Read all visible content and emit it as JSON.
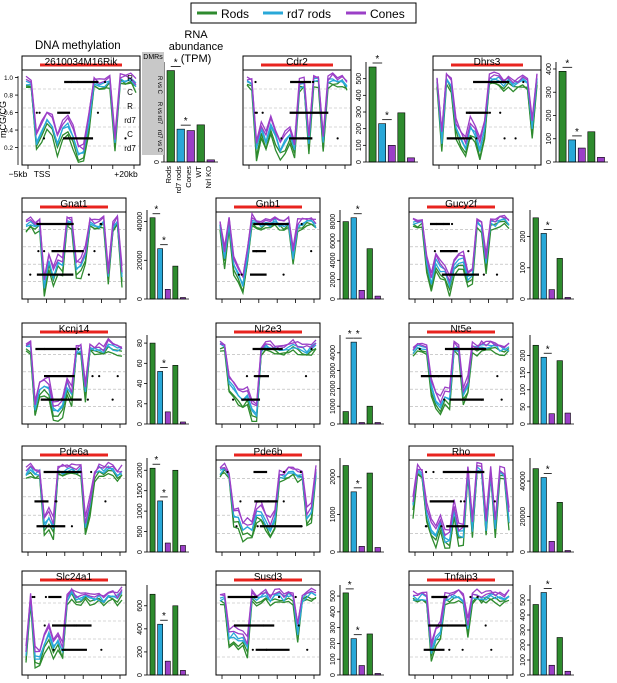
{
  "legend": [
    {
      "label": "Rods",
      "color": "#2e8b2e"
    },
    {
      "label": "rd7 rods",
      "color": "#29a8d8"
    },
    {
      "label": "Cones",
      "color": "#9b3fc7"
    }
  ],
  "headers": {
    "dna": "DNA methylation",
    "rna1": "RNA",
    "rna2": "abundance",
    "rna3": "(TPM)"
  },
  "first_panel": {
    "dmr_header": "DMRs",
    "row_labels": [
      "R",
      "C",
      "R",
      "rd7",
      "C",
      "rd7"
    ],
    "dmr_labels": [
      "R vs C",
      "R vs rd7",
      "rd7 vs C"
    ],
    "ylabel": "mCG/CG",
    "yticks": [
      "0.2",
      "0.4",
      "0.6",
      "0.8",
      "1.0"
    ],
    "xticks": [
      "−5kb",
      "TSS",
      "+20kb"
    ],
    "bar_xticks": [
      "Rods",
      "rd7 rods",
      "Cones",
      "WT",
      "Nrl KO"
    ],
    "bar_yticks": [
      "0",
      "200",
      "400",
      "600"
    ]
  },
  "colors": {
    "rods": "#2e8b2e",
    "rd7": "#29a8d8",
    "cones": "#9b3fc7",
    "gene_bar": "#e8241f",
    "shade": "#c8c8c8"
  },
  "chart_data": [
    {
      "type": "bar",
      "gene": "2610034M16Rik",
      "categories": [
        "Rods",
        "rd7 rods",
        "Cones",
        "WT",
        "Nrl KO"
      ],
      "values": [
        640,
        230,
        220,
        260,
        15
      ],
      "yticks": [
        "0",
        "200",
        "400",
        "600"
      ],
      "ylim": [
        0,
        700
      ],
      "sig": [
        {
          "a": 0,
          "b": 1,
          "label": "*"
        },
        {
          "a": 1,
          "b": 2,
          "label": "*"
        }
      ]
    },
    {
      "type": "bar",
      "gene": "Cdr2",
      "categories": [
        "Rods",
        "rd7 rods",
        "Cones",
        "WT",
        "Nrl KO"
      ],
      "values": [
        570,
        230,
        100,
        295,
        25
      ],
      "yticks": [
        "0",
        "100",
        "200",
        "300",
        "400",
        "500"
      ],
      "ylim": [
        0,
        600
      ],
      "sig": [
        {
          "a": 0,
          "b": 1,
          "label": "*"
        },
        {
          "a": 1,
          "b": 2,
          "label": "*"
        }
      ]
    },
    {
      "type": "bar",
      "gene": "Dhrs3",
      "categories": [
        "Rods",
        "rd7 rods",
        "Cones",
        "WT",
        "Nrl KO"
      ],
      "values": [
        390,
        95,
        60,
        130,
        20
      ],
      "yticks": [
        "0",
        "100",
        "200",
        "300",
        "400"
      ],
      "ylim": [
        0,
        430
      ],
      "sig": [
        {
          "a": 0,
          "b": 1,
          "label": "*"
        },
        {
          "a": 1,
          "b": 2,
          "label": "*"
        }
      ]
    },
    {
      "type": "bar",
      "gene": "Gnat1",
      "categories": [
        "Rods",
        "rd7 rods",
        "Cones",
        "WT",
        "Nrl KO"
      ],
      "values": [
        42000,
        26000,
        5000,
        17000,
        500
      ],
      "yticks": [
        "0",
        "20000",
        "40000"
      ],
      "ylim": [
        0,
        46000
      ],
      "sig": [
        {
          "a": 0,
          "b": 1,
          "label": "*"
        },
        {
          "a": 1,
          "b": 2,
          "label": "*"
        }
      ]
    },
    {
      "type": "bar",
      "gene": "Gnb1",
      "categories": [
        "Rods",
        "rd7 rods",
        "Cones",
        "WT",
        "Nrl KO"
      ],
      "values": [
        8000,
        8400,
        900,
        5200,
        300
      ],
      "yticks": [
        "0",
        "2000",
        "4000",
        "6000",
        "8000"
      ],
      "ylim": [
        0,
        9200
      ],
      "sig": [
        {
          "a": 1,
          "b": 2,
          "label": "*"
        }
      ]
    },
    {
      "type": "bar",
      "gene": "Gucy2f",
      "categories": [
        "Rods",
        "rd7 rods",
        "Cones",
        "WT",
        "Nrl KO"
      ],
      "values": [
        260,
        210,
        30,
        130,
        5
      ],
      "yticks": [
        "0",
        "100",
        "200"
      ],
      "ylim": [
        0,
        285
      ],
      "sig": [
        {
          "a": 1,
          "b": 2,
          "label": "*"
        }
      ]
    },
    {
      "type": "bar",
      "gene": "Kcnj14",
      "categories": [
        "Rods",
        "rd7 rods",
        "Cones",
        "WT",
        "Nrl KO"
      ],
      "values": [
        80,
        52,
        12,
        58,
        2
      ],
      "yticks": [
        "0",
        "20",
        "40",
        "60",
        "80"
      ],
      "ylim": [
        0,
        88
      ],
      "sig": [
        {
          "a": 1,
          "b": 2,
          "label": "*"
        }
      ]
    },
    {
      "type": "bar",
      "gene": "Nr2e3",
      "categories": [
        "Rods",
        "rd7 rods",
        "Cones",
        "WT",
        "Nrl KO"
      ],
      "values": [
        700,
        4600,
        50,
        1000,
        20
      ],
      "yticks": [
        "0",
        "1000",
        "2000",
        "3000",
        "4000"
      ],
      "ylim": [
        0,
        5000
      ],
      "sig": [
        {
          "a": 0,
          "b": 1,
          "label": "*"
        },
        {
          "a": 1,
          "b": 2,
          "label": "*"
        }
      ]
    },
    {
      "type": "bar",
      "gene": "Nt5e",
      "categories": [
        "Rods",
        "rd7 rods",
        "Cones",
        "WT",
        "Nrl KO"
      ],
      "values": [
        230,
        195,
        30,
        185,
        32
      ],
      "yticks": [
        "0",
        "50",
        "100",
        "150",
        "200"
      ],
      "ylim": [
        0,
        260
      ],
      "sig": [
        {
          "a": 1,
          "b": 2,
          "label": "*"
        }
      ]
    },
    {
      "type": "bar",
      "gene": "Pde6a",
      "categories": [
        "Rods",
        "rd7 rods",
        "Cones",
        "WT",
        "Nrl KO"
      ],
      "values": [
        2050,
        1250,
        220,
        2000,
        160
      ],
      "yticks": [
        "0",
        "500",
        "1000",
        "1500",
        "2000"
      ],
      "ylim": [
        0,
        2300
      ],
      "sig": [
        {
          "a": 0,
          "b": 1,
          "label": "*"
        },
        {
          "a": 1,
          "b": 2,
          "label": "*"
        }
      ]
    },
    {
      "type": "bar",
      "gene": "Pde6b",
      "categories": [
        "Rods",
        "rd7 rods",
        "Cones",
        "WT",
        "Nrl KO"
      ],
      "values": [
        2300,
        1600,
        150,
        2100,
        120
      ],
      "yticks": [
        "0",
        "1000",
        "2000"
      ],
      "ylim": [
        0,
        2500
      ],
      "sig": [
        {
          "a": 1,
          "b": 2,
          "label": "*"
        }
      ]
    },
    {
      "type": "bar",
      "gene": "Rho",
      "categories": [
        "Rods",
        "rd7 rods",
        "Cones",
        "WT",
        "Nrl KO"
      ],
      "values": [
        47000,
        42000,
        6000,
        28000,
        500
      ],
      "yticks": [
        "0",
        "20000",
        "40000"
      ],
      "ylim": [
        0,
        53000
      ],
      "sig": [
        {
          "a": 1,
          "b": 2,
          "label": "*"
        }
      ]
    },
    {
      "type": "bar",
      "gene": "Slc24a1",
      "categories": [
        "Rods",
        "rd7 rods",
        "Cones",
        "WT",
        "Nrl KO"
      ],
      "values": [
        700,
        440,
        120,
        600,
        40
      ],
      "yticks": [
        "0",
        "200",
        "400",
        "600"
      ],
      "ylim": [
        0,
        780
      ],
      "sig": [
        {
          "a": 1,
          "b": 2,
          "label": "*"
        }
      ]
    },
    {
      "type": "bar",
      "gene": "Susd3",
      "categories": [
        "Rods",
        "rd7 rods",
        "Cones",
        "WT",
        "Nrl KO"
      ],
      "values": [
        520,
        230,
        60,
        260,
        10
      ],
      "yticks": [
        "0",
        "100",
        "200",
        "300",
        "400",
        "500"
      ],
      "ylim": [
        0,
        570
      ],
      "sig": [
        {
          "a": 0,
          "b": 1,
          "label": "*"
        },
        {
          "a": 1,
          "b": 2,
          "label": "*"
        }
      ]
    },
    {
      "type": "bar",
      "gene": "Tnfaip3",
      "categories": [
        "Rods",
        "rd7 rods",
        "Cones",
        "WT",
        "Nrl KO"
      ],
      "values": [
        470,
        550,
        65,
        250,
        25
      ],
      "yticks": [
        "0",
        "100",
        "200",
        "300",
        "400",
        "500"
      ],
      "ylim": [
        0,
        600
      ],
      "sig": [
        {
          "a": 1,
          "b": 2,
          "label": "*"
        }
      ]
    }
  ]
}
